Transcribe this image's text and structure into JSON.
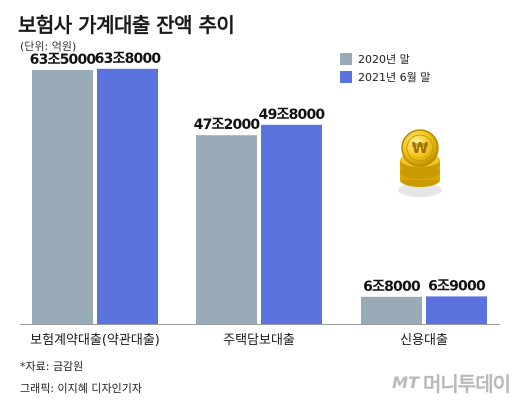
{
  "header": {
    "title": "보험사 가계대출 잔액 추이",
    "unit": "(단위: 억원)"
  },
  "colors": {
    "series_2020": "#9aabb8",
    "series_2021": "#5b73df",
    "axis": "#999999"
  },
  "chart_data": {
    "type": "bar",
    "title": "보험사 가계대출 잔액 추이",
    "ylabel": "(단위: 억원)",
    "categories": [
      "보험계약대출(약관대출)",
      "주택담보대출",
      "신용대출"
    ],
    "series": [
      {
        "name": "2020년 말",
        "values": [
          635000,
          472000,
          68000
        ],
        "labels": [
          "63조5000",
          "47조2000",
          "6조8000"
        ]
      },
      {
        "name": "2021년 6월 말",
        "values": [
          638000,
          498000,
          69000
        ],
        "labels": [
          "63조8000",
          "49조8000",
          "6조9000"
        ]
      }
    ],
    "ylim": [
      0,
      650000
    ],
    "grid": false,
    "legend": "top-right"
  },
  "footer": {
    "source": "*자료: 금감원",
    "credit": "그래픽: 이지혜 디자인기자"
  },
  "brand": {
    "mt": "MT",
    "name": "머니투데이"
  }
}
